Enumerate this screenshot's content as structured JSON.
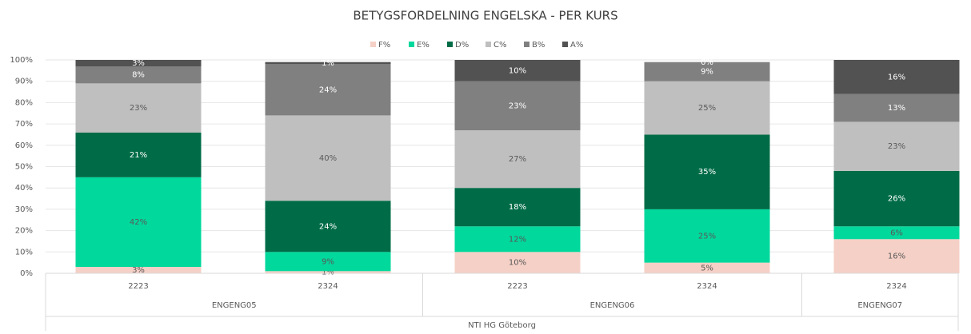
{
  "chart_data": {
    "type": "stacked_bar",
    "title": "BETYGSFORDELNING ENGELSKA - PER KURS",
    "categories": [
      "2223",
      "2324",
      "2223",
      "2324",
      "2324"
    ],
    "groups": [
      {
        "name": "ENGENG05",
        "count": 2
      },
      {
        "name": "ENGENG06",
        "count": 2
      },
      {
        "name": "ENGENG07",
        "count": 1
      }
    ],
    "supergroup": "NTI HG Göteborg",
    "series": [
      {
        "name": "F%",
        "color": "#f5d0c6",
        "values": [
          3,
          1,
          10,
          5,
          16
        ],
        "value_labels": [
          "3%",
          "1%",
          "10%",
          "5%",
          "16%"
        ]
      },
      {
        "name": "E%",
        "color": "#00d89c",
        "values": [
          42,
          9,
          12,
          25,
          6
        ],
        "value_labels": [
          "42%",
          "9%",
          "12%",
          "25%",
          "6%"
        ]
      },
      {
        "name": "D%",
        "color": "#006c47",
        "values": [
          21,
          24,
          18,
          35,
          26
        ],
        "value_labels": [
          "21%",
          "24%",
          "18%",
          "35%",
          "26%"
        ]
      },
      {
        "name": "C%",
        "color": "#bfbfbf",
        "values": [
          23,
          40,
          27,
          25,
          23
        ],
        "value_labels": [
          "23%",
          "40%",
          "27%",
          "25%",
          "23%"
        ]
      },
      {
        "name": "B%",
        "color": "#808080",
        "values": [
          8,
          24,
          23,
          9,
          13
        ],
        "value_labels": [
          "8%",
          "24%",
          "23%",
          "9%",
          "13%"
        ]
      },
      {
        "name": "A%",
        "color": "#525252",
        "values": [
          3,
          1,
          10,
          0,
          16
        ],
        "value_labels": [
          "3%",
          "1%",
          "10%",
          "0%",
          "16%"
        ]
      }
    ],
    "ylim": [
      0,
      100
    ],
    "yticks": [
      {
        "value": 0,
        "label": "0%"
      },
      {
        "value": 10,
        "label": "10%"
      },
      {
        "value": 20,
        "label": "20%"
      },
      {
        "value": 30,
        "label": "30%"
      },
      {
        "value": 40,
        "label": "40%"
      },
      {
        "value": 50,
        "label": "50%"
      },
      {
        "value": 60,
        "label": "60%"
      },
      {
        "value": 70,
        "label": "70%"
      },
      {
        "value": 80,
        "label": "80%"
      },
      {
        "value": 90,
        "label": "90%"
      },
      {
        "value": 100,
        "label": "100%"
      }
    ],
    "grid": true,
    "legend": "top"
  }
}
